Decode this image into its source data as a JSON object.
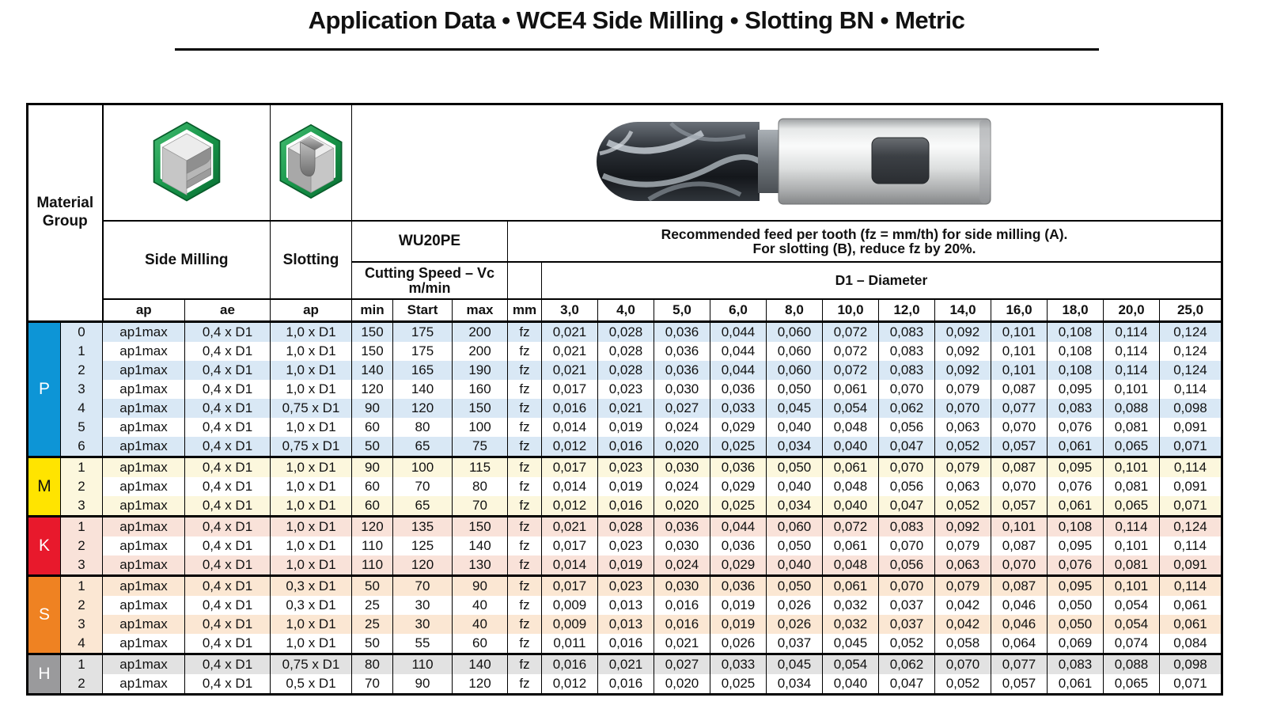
{
  "title": "Application Data • WCE4 Side Milling • Slotting BN • Metric",
  "header": {
    "material_group_line1": "Material",
    "material_group_line2": "Group",
    "side_milling_label": "Side Milling",
    "slotting_label": "Slotting",
    "tool_series": "WU20PE",
    "cutting_speed_line1": "Cutting Speed – Vc",
    "cutting_speed_line2": "m/min",
    "feed_note_line1": "Recommended feed per tooth (fz = mm/th) for side milling (A).",
    "feed_note_line2": "For slotting (B), reduce fz by 20%.",
    "diameter_label": "D1 – Diameter",
    "sub_columns": [
      "ap",
      "ae",
      "ap",
      "min",
      "Start",
      "max",
      "mm"
    ],
    "diameters": [
      "3,0",
      "4,0",
      "5,0",
      "6,0",
      "8,0",
      "10,0",
      "12,0",
      "14,0",
      "16,0",
      "18,0",
      "20,0",
      "25,0"
    ],
    "icons": {
      "side_milling": "side-milling-workpiece-icon",
      "slotting": "slotting-workpiece-icon",
      "tool_photo": "ball-nose-end-mill-image"
    }
  },
  "colors": {
    "border": "#000000",
    "group_P": "#0d95d6",
    "group_M": "#ffe400",
    "group_K": "#e8192c",
    "group_S": "#ef8222",
    "group_H": "#9a9a9c",
    "tint_P": "#d9e8f5",
    "tint_M": "#fcf7dd",
    "tint_K": "#f9e2d9",
    "tint_S": "#fbe7d3",
    "tint_H": "#e2e2e2",
    "icon_green": "#1b9a4c"
  },
  "groups": [
    {
      "letter": "P",
      "color": "#0d95d6",
      "letter_color": "#ffffff",
      "tint": "#d9e8f5",
      "rows": [
        {
          "sub": "0",
          "ap": "ap1max",
          "ae": "0,4 x D1",
          "slot_ap": "1,0 x D1",
          "vc_min": "150",
          "vc_start": "175",
          "vc_max": "200",
          "unit": "fz",
          "fz": [
            "0,021",
            "0,028",
            "0,036",
            "0,044",
            "0,060",
            "0,072",
            "0,083",
            "0,092",
            "0,101",
            "0,108",
            "0,114",
            "0,124"
          ]
        },
        {
          "sub": "1",
          "ap": "ap1max",
          "ae": "0,4 x D1",
          "slot_ap": "1,0 x D1",
          "vc_min": "150",
          "vc_start": "175",
          "vc_max": "200",
          "unit": "fz",
          "fz": [
            "0,021",
            "0,028",
            "0,036",
            "0,044",
            "0,060",
            "0,072",
            "0,083",
            "0,092",
            "0,101",
            "0,108",
            "0,114",
            "0,124"
          ]
        },
        {
          "sub": "2",
          "ap": "ap1max",
          "ae": "0,4 x D1",
          "slot_ap": "1,0 x D1",
          "vc_min": "140",
          "vc_start": "165",
          "vc_max": "190",
          "unit": "fz",
          "fz": [
            "0,021",
            "0,028",
            "0,036",
            "0,044",
            "0,060",
            "0,072",
            "0,083",
            "0,092",
            "0,101",
            "0,108",
            "0,114",
            "0,124"
          ]
        },
        {
          "sub": "3",
          "ap": "ap1max",
          "ae": "0,4 x D1",
          "slot_ap": "1,0 x D1",
          "vc_min": "120",
          "vc_start": "140",
          "vc_max": "160",
          "unit": "fz",
          "fz": [
            "0,017",
            "0,023",
            "0,030",
            "0,036",
            "0,050",
            "0,061",
            "0,070",
            "0,079",
            "0,087",
            "0,095",
            "0,101",
            "0,114"
          ]
        },
        {
          "sub": "4",
          "ap": "ap1max",
          "ae": "0,4 x D1",
          "slot_ap": "0,75 x D1",
          "vc_min": "90",
          "vc_start": "120",
          "vc_max": "150",
          "unit": "fz",
          "fz": [
            "0,016",
            "0,021",
            "0,027",
            "0,033",
            "0,045",
            "0,054",
            "0,062",
            "0,070",
            "0,077",
            "0,083",
            "0,088",
            "0,098"
          ]
        },
        {
          "sub": "5",
          "ap": "ap1max",
          "ae": "0,4 x D1",
          "slot_ap": "1,0 x D1",
          "vc_min": "60",
          "vc_start": "80",
          "vc_max": "100",
          "unit": "fz",
          "fz": [
            "0,014",
            "0,019",
            "0,024",
            "0,029",
            "0,040",
            "0,048",
            "0,056",
            "0,063",
            "0,070",
            "0,076",
            "0,081",
            "0,091"
          ]
        },
        {
          "sub": "6",
          "ap": "ap1max",
          "ae": "0,4 x D1",
          "slot_ap": "0,75 x D1",
          "vc_min": "50",
          "vc_start": "65",
          "vc_max": "75",
          "unit": "fz",
          "fz": [
            "0,012",
            "0,016",
            "0,020",
            "0,025",
            "0,034",
            "0,040",
            "0,047",
            "0,052",
            "0,057",
            "0,061",
            "0,065",
            "0,071"
          ]
        }
      ]
    },
    {
      "letter": "M",
      "color": "#ffe400",
      "letter_color": "#111111",
      "tint": "#fcf7dd",
      "rows": [
        {
          "sub": "1",
          "ap": "ap1max",
          "ae": "0,4 x D1",
          "slot_ap": "1,0 x D1",
          "vc_min": "90",
          "vc_start": "100",
          "vc_max": "115",
          "unit": "fz",
          "fz": [
            "0,017",
            "0,023",
            "0,030",
            "0,036",
            "0,050",
            "0,061",
            "0,070",
            "0,079",
            "0,087",
            "0,095",
            "0,101",
            "0,114"
          ]
        },
        {
          "sub": "2",
          "ap": "ap1max",
          "ae": "0,4 x D1",
          "slot_ap": "1,0 x D1",
          "vc_min": "60",
          "vc_start": "70",
          "vc_max": "80",
          "unit": "fz",
          "fz": [
            "0,014",
            "0,019",
            "0,024",
            "0,029",
            "0,040",
            "0,048",
            "0,056",
            "0,063",
            "0,070",
            "0,076",
            "0,081",
            "0,091"
          ]
        },
        {
          "sub": "3",
          "ap": "ap1max",
          "ae": "0,4 x D1",
          "slot_ap": "1,0 x D1",
          "vc_min": "60",
          "vc_start": "65",
          "vc_max": "70",
          "unit": "fz",
          "fz": [
            "0,012",
            "0,016",
            "0,020",
            "0,025",
            "0,034",
            "0,040",
            "0,047",
            "0,052",
            "0,057",
            "0,061",
            "0,065",
            "0,071"
          ]
        }
      ]
    },
    {
      "letter": "K",
      "color": "#e8192c",
      "letter_color": "#ffffff",
      "tint": "#f9e2d9",
      "rows": [
        {
          "sub": "1",
          "ap": "ap1max",
          "ae": "0,4 x D1",
          "slot_ap": "1,0 x D1",
          "vc_min": "120",
          "vc_start": "135",
          "vc_max": "150",
          "unit": "fz",
          "fz": [
            "0,021",
            "0,028",
            "0,036",
            "0,044",
            "0,060",
            "0,072",
            "0,083",
            "0,092",
            "0,101",
            "0,108",
            "0,114",
            "0,124"
          ]
        },
        {
          "sub": "2",
          "ap": "ap1max",
          "ae": "0,4 x D1",
          "slot_ap": "1,0 x D1",
          "vc_min": "110",
          "vc_start": "125",
          "vc_max": "140",
          "unit": "fz",
          "fz": [
            "0,017",
            "0,023",
            "0,030",
            "0,036",
            "0,050",
            "0,061",
            "0,070",
            "0,079",
            "0,087",
            "0,095",
            "0,101",
            "0,114"
          ]
        },
        {
          "sub": "3",
          "ap": "ap1max",
          "ae": "0,4 x D1",
          "slot_ap": "1,0 x D1",
          "vc_min": "110",
          "vc_start": "120",
          "vc_max": "130",
          "unit": "fz",
          "fz": [
            "0,014",
            "0,019",
            "0,024",
            "0,029",
            "0,040",
            "0,048",
            "0,056",
            "0,063",
            "0,070",
            "0,076",
            "0,081",
            "0,091"
          ]
        }
      ]
    },
    {
      "letter": "S",
      "color": "#ef8222",
      "letter_color": "#ffffff",
      "tint": "#fbe7d3",
      "rows": [
        {
          "sub": "1",
          "ap": "ap1max",
          "ae": "0,4 x D1",
          "slot_ap": "0,3 x D1",
          "vc_min": "50",
          "vc_start": "70",
          "vc_max": "90",
          "unit": "fz",
          "fz": [
            "0,017",
            "0,023",
            "0,030",
            "0,036",
            "0,050",
            "0,061",
            "0,070",
            "0,079",
            "0,087",
            "0,095",
            "0,101",
            "0,114"
          ]
        },
        {
          "sub": "2",
          "ap": "ap1max",
          "ae": "0,4 x D1",
          "slot_ap": "0,3 x D1",
          "vc_min": "25",
          "vc_start": "30",
          "vc_max": "40",
          "unit": "fz",
          "fz": [
            "0,009",
            "0,013",
            "0,016",
            "0,019",
            "0,026",
            "0,032",
            "0,037",
            "0,042",
            "0,046",
            "0,050",
            "0,054",
            "0,061"
          ]
        },
        {
          "sub": "3",
          "ap": "ap1max",
          "ae": "0,4 x D1",
          "slot_ap": "1,0 x D1",
          "vc_min": "25",
          "vc_start": "30",
          "vc_max": "40",
          "unit": "fz",
          "fz": [
            "0,009",
            "0,013",
            "0,016",
            "0,019",
            "0,026",
            "0,032",
            "0,037",
            "0,042",
            "0,046",
            "0,050",
            "0,054",
            "0,061"
          ]
        },
        {
          "sub": "4",
          "ap": "ap1max",
          "ae": "0,4 x D1",
          "slot_ap": "1,0 x D1",
          "vc_min": "50",
          "vc_start": "55",
          "vc_max": "60",
          "unit": "fz",
          "fz": [
            "0,011",
            "0,016",
            "0,021",
            "0,026",
            "0,037",
            "0,045",
            "0,052",
            "0,058",
            "0,064",
            "0,069",
            "0,074",
            "0,084"
          ]
        }
      ]
    },
    {
      "letter": "H",
      "color": "#9a9a9c",
      "letter_color": "#ffffff",
      "tint": "#e2e2e2",
      "rows": [
        {
          "sub": "1",
          "ap": "ap1max",
          "ae": "0,4 x D1",
          "slot_ap": "0,75 x D1",
          "vc_min": "80",
          "vc_start": "110",
          "vc_max": "140",
          "unit": "fz",
          "fz": [
            "0,016",
            "0,021",
            "0,027",
            "0,033",
            "0,045",
            "0,054",
            "0,062",
            "0,070",
            "0,077",
            "0,083",
            "0,088",
            "0,098"
          ]
        },
        {
          "sub": "2",
          "ap": "ap1max",
          "ae": "0,4 x D1",
          "slot_ap": "0,5 x D1",
          "vc_min": "70",
          "vc_start": "90",
          "vc_max": "120",
          "unit": "fz",
          "fz": [
            "0,012",
            "0,016",
            "0,020",
            "0,025",
            "0,034",
            "0,040",
            "0,047",
            "0,052",
            "0,057",
            "0,061",
            "0,065",
            "0,071"
          ]
        }
      ]
    }
  ]
}
